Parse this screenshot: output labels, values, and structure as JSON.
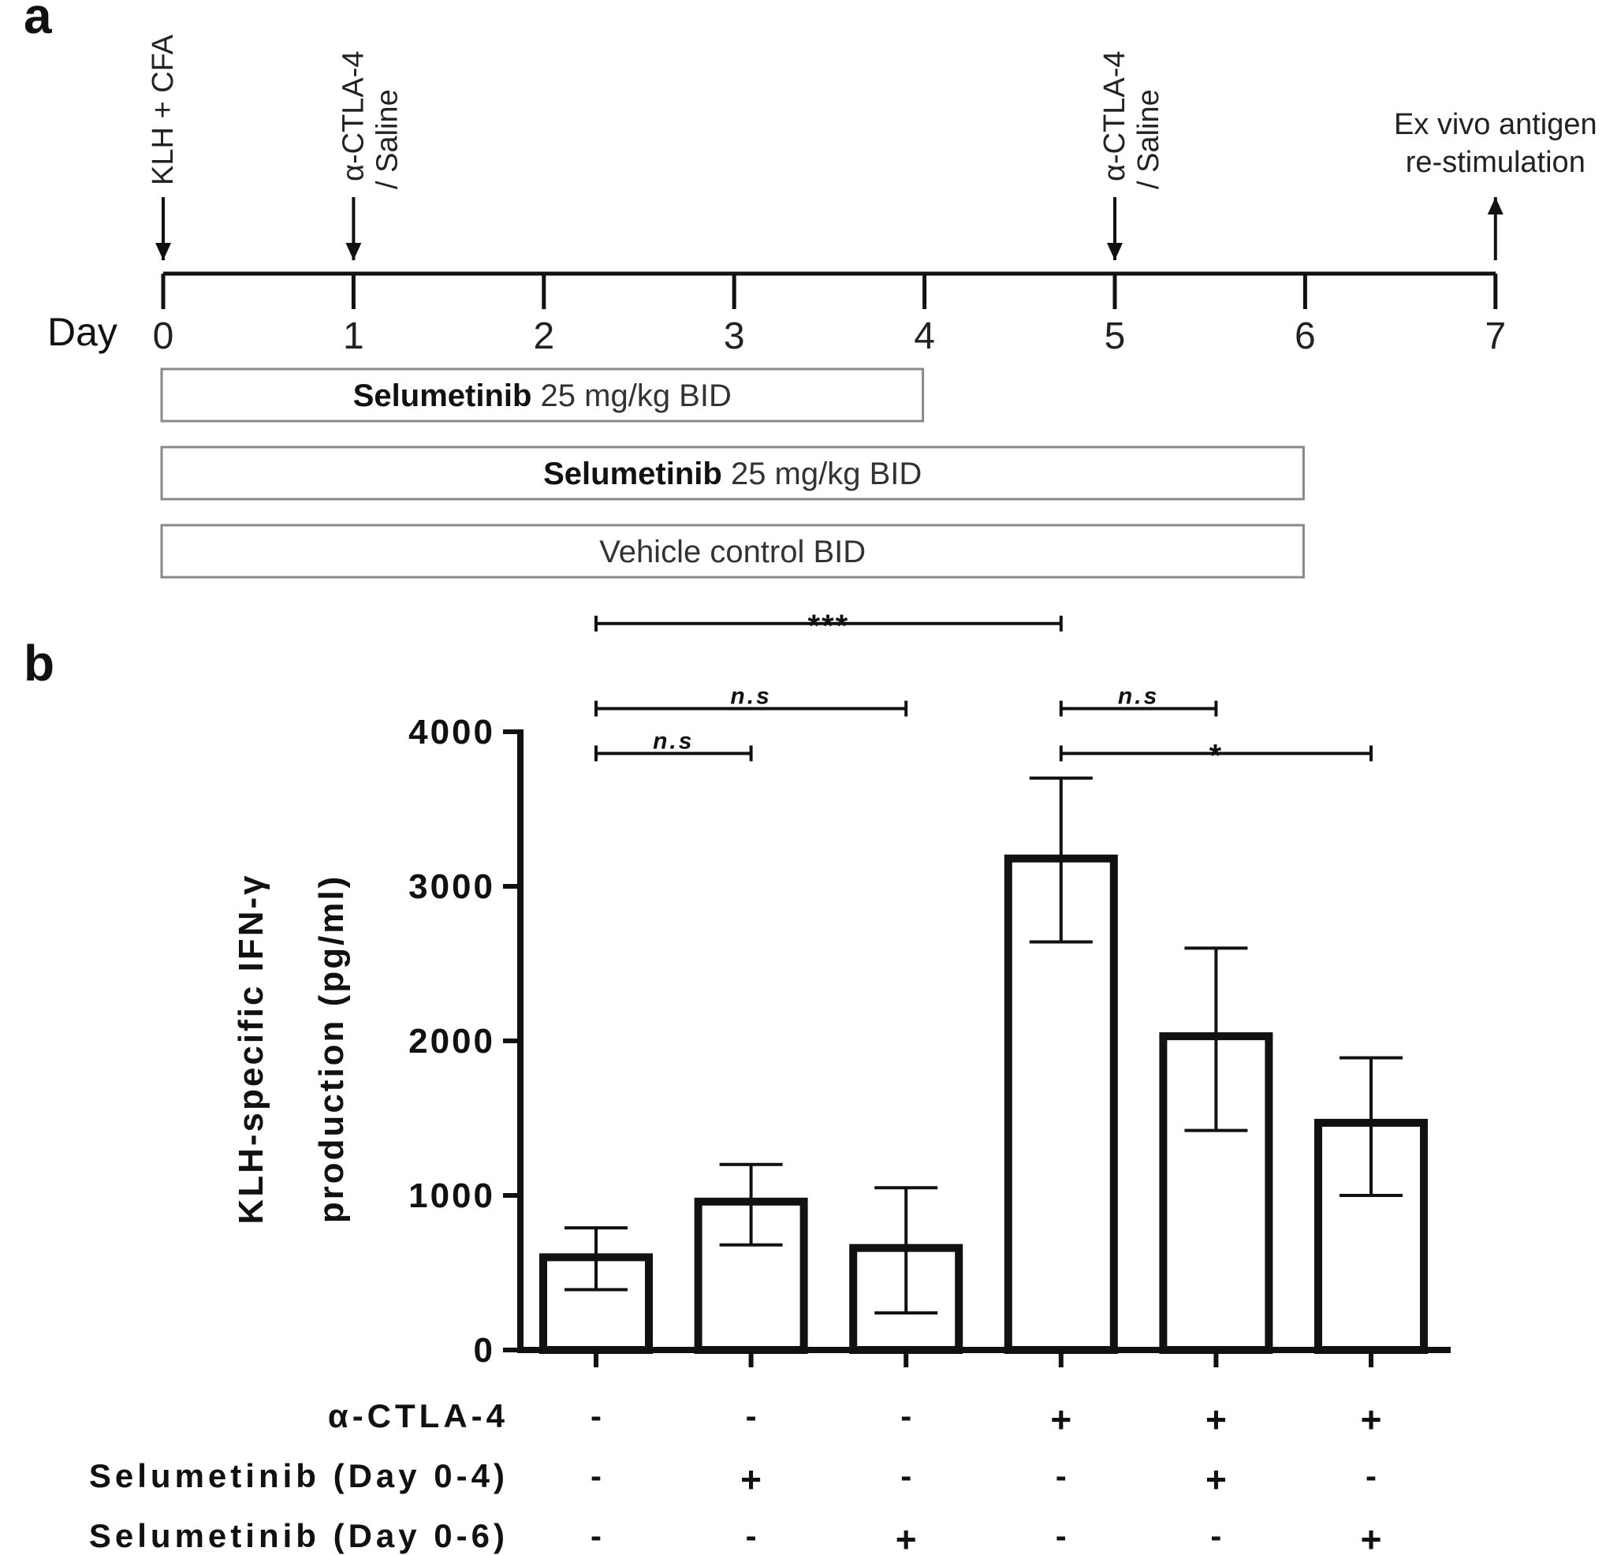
{
  "panel_a": {
    "label": "a",
    "day_label": "Day",
    "days": [
      "0",
      "1",
      "2",
      "3",
      "4",
      "5",
      "6",
      "7"
    ],
    "events": [
      {
        "day": 0,
        "line1": "KLH + CFA",
        "line2": "",
        "direction": "down"
      },
      {
        "day": 1,
        "line1": "α-CTLA-4",
        "line2": "/ Saline",
        "direction": "down"
      },
      {
        "day": 5,
        "line1": "α-CTLA-4",
        "line2": "/ Saline",
        "direction": "down"
      }
    ],
    "readout": {
      "day": 7,
      "line1": "Ex vivo antigen",
      "line2": "re-stimulation",
      "direction": "up"
    },
    "regimens": [
      {
        "bold": "Selumetinib",
        "text": " 25 mg/kg BID",
        "start_day": 0,
        "end_day": 4
      },
      {
        "bold": "Selumetinib",
        "text": "  25 mg/kg BID",
        "start_day": 0,
        "end_day": 6
      },
      {
        "bold": "",
        "text": "Vehicle control BID",
        "start_day": 0,
        "end_day": 6
      }
    ]
  },
  "chart_data": {
    "panel_label": "b",
    "type": "bar",
    "title": "",
    "ylabel_line1": "KLH-specific IFN-γ",
    "ylabel_line2": "production (pg/ml)",
    "ylim": [
      0,
      4000
    ],
    "yticks": [
      0,
      1000,
      2000,
      3000,
      4000
    ],
    "values": [
      600,
      960,
      660,
      3180,
      2030,
      1470
    ],
    "errors": [
      [
        390,
        790
      ],
      [
        680,
        1200
      ],
      [
        240,
        1050
      ],
      [
        2640,
        3700
      ],
      [
        1420,
        2600
      ],
      [
        1000,
        1890
      ]
    ],
    "conditions": [
      {
        "label": "α-CTLA-4",
        "signs": [
          "-",
          "-",
          "-",
          "+",
          "+",
          "+"
        ]
      },
      {
        "label": "Selumetinib (Day 0-4)",
        "signs": [
          "-",
          "+",
          "-",
          "-",
          "+",
          "-"
        ]
      },
      {
        "label": "Selumetinib (Day 0-6)",
        "signs": [
          "-",
          "-",
          "+",
          "-",
          "-",
          "+"
        ]
      }
    ],
    "significance": [
      {
        "from": 0,
        "to": 3,
        "text": "***",
        "level": 4700
      },
      {
        "from": 0,
        "to": 2,
        "text": "n.s",
        "level": 4150
      },
      {
        "from": 3,
        "to": 4,
        "text": "n.s",
        "level": 4150
      },
      {
        "from": 0,
        "to": 1,
        "text": "n.s",
        "level": 3860
      },
      {
        "from": 3,
        "to": 5,
        "text": "*",
        "level": 3860
      }
    ]
  }
}
